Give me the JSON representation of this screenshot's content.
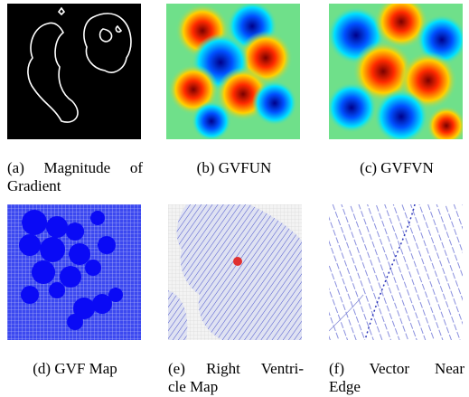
{
  "figure": {
    "panels": [
      {
        "caption": [
          "(a) Magnitude of",
          "Gradient"
        ]
      },
      {
        "caption": [
          "(b) GVFUN"
        ]
      },
      {
        "caption": [
          "(c) GVFVN"
        ]
      },
      {
        "caption": [
          "(d) GVF Map"
        ]
      },
      {
        "caption": [
          "(e) Right Ventri-",
          "cle Map"
        ]
      },
      {
        "caption": [
          "(f) Vector Near",
          "Edge"
        ]
      }
    ]
  }
}
